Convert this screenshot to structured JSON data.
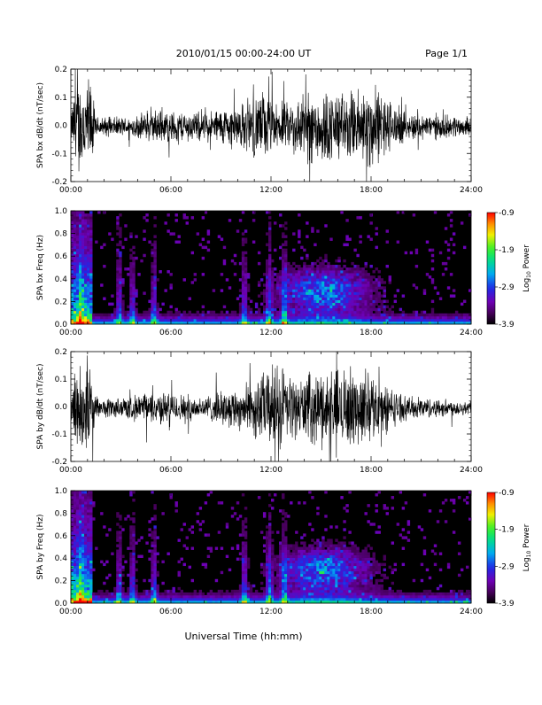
{
  "header": {
    "title": "2010/01/15  00:00-24:00 UT",
    "page": "Page 1/1"
  },
  "footer": {
    "xlabel": "Universal Time (hh:mm)"
  },
  "colorbar": {
    "label": "Log",
    "label_sub": "10",
    "label_tail": " Power",
    "ticks": [
      "-0.9",
      "-1.9",
      "-2.9",
      "-3.9"
    ],
    "range": [
      -3.9,
      -0.9
    ]
  },
  "chart_data": [
    {
      "type": "line",
      "ylabel": "SPA bx dB/dt (nT/sec)",
      "xlim": [
        0,
        24
      ],
      "ylim": [
        -0.2,
        0.2
      ],
      "yticks": [
        "0.2",
        "0.1",
        "0.0",
        "-0.1",
        "-0.2"
      ],
      "xticks": [
        "00:00",
        "06:00",
        "12:00",
        "18:00",
        "24:00"
      ],
      "activity_profile": [
        {
          "t": 0.0,
          "amp": 0.05
        },
        {
          "t": 0.3,
          "amp": 0.2
        },
        {
          "t": 1.2,
          "amp": 0.2
        },
        {
          "t": 1.5,
          "amp": 0.04
        },
        {
          "t": 3.5,
          "amp": 0.04
        },
        {
          "t": 5.0,
          "amp": 0.07
        },
        {
          "t": 8.0,
          "amp": 0.06
        },
        {
          "t": 10.5,
          "amp": 0.1
        },
        {
          "t": 11.5,
          "amp": 0.15
        },
        {
          "t": 12.5,
          "amp": 0.08
        },
        {
          "t": 14.5,
          "amp": 0.16
        },
        {
          "t": 16.5,
          "amp": 0.14
        },
        {
          "t": 18.0,
          "amp": 0.18
        },
        {
          "t": 20.0,
          "amp": 0.06
        },
        {
          "t": 24.0,
          "amp": 0.04
        }
      ]
    },
    {
      "type": "heatmap",
      "ylabel": "SPA bx Freq (Hz)",
      "xlim": [
        0,
        24
      ],
      "ylim": [
        0.0,
        1.0
      ],
      "yticks": [
        "1.0",
        "0.8",
        "0.6",
        "0.4",
        "0.2",
        "0.0"
      ],
      "xticks": [
        "00:00",
        "06:00",
        "12:00",
        "18:00",
        "24:00"
      ],
      "zlim": [
        -3.9,
        -0.9
      ],
      "bursts": [
        0.6,
        2.9,
        3.7,
        5.0,
        10.4,
        11.9,
        12.8
      ]
    },
    {
      "type": "line",
      "ylabel": "SPA by dB/dt (nT/sec)",
      "xlim": [
        0,
        24
      ],
      "ylim": [
        -0.2,
        0.2
      ],
      "yticks": [
        "0.2",
        "0.1",
        "0.0",
        "-0.1",
        "-0.2"
      ],
      "xticks": [
        "00:00",
        "06:00",
        "12:00",
        "18:00",
        "24:00"
      ],
      "activity_profile": [
        {
          "t": 0.0,
          "amp": 0.05
        },
        {
          "t": 0.3,
          "amp": 0.2
        },
        {
          "t": 1.2,
          "amp": 0.2
        },
        {
          "t": 1.5,
          "amp": 0.04
        },
        {
          "t": 3.5,
          "amp": 0.05
        },
        {
          "t": 5.0,
          "amp": 0.07
        },
        {
          "t": 8.0,
          "amp": 0.05
        },
        {
          "t": 10.5,
          "amp": 0.1
        },
        {
          "t": 12.5,
          "amp": 0.2
        },
        {
          "t": 13.5,
          "amp": 0.12
        },
        {
          "t": 15.0,
          "amp": 0.16
        },
        {
          "t": 16.5,
          "amp": 0.17
        },
        {
          "t": 18.0,
          "amp": 0.14
        },
        {
          "t": 20.0,
          "amp": 0.05
        },
        {
          "t": 24.0,
          "amp": 0.03
        }
      ]
    },
    {
      "type": "heatmap",
      "ylabel": "SPA by Freq (Hz)",
      "xlim": [
        0,
        24
      ],
      "ylim": [
        0.0,
        1.0
      ],
      "yticks": [
        "1.0",
        "0.8",
        "0.6",
        "0.4",
        "0.2",
        "0.0"
      ],
      "xticks": [
        "00:00",
        "06:00",
        "12:00",
        "18:00",
        "24:00"
      ],
      "zlim": [
        -3.9,
        -0.9
      ],
      "bursts": [
        0.6,
        2.9,
        3.7,
        5.0,
        10.4,
        11.9,
        12.8
      ]
    }
  ]
}
